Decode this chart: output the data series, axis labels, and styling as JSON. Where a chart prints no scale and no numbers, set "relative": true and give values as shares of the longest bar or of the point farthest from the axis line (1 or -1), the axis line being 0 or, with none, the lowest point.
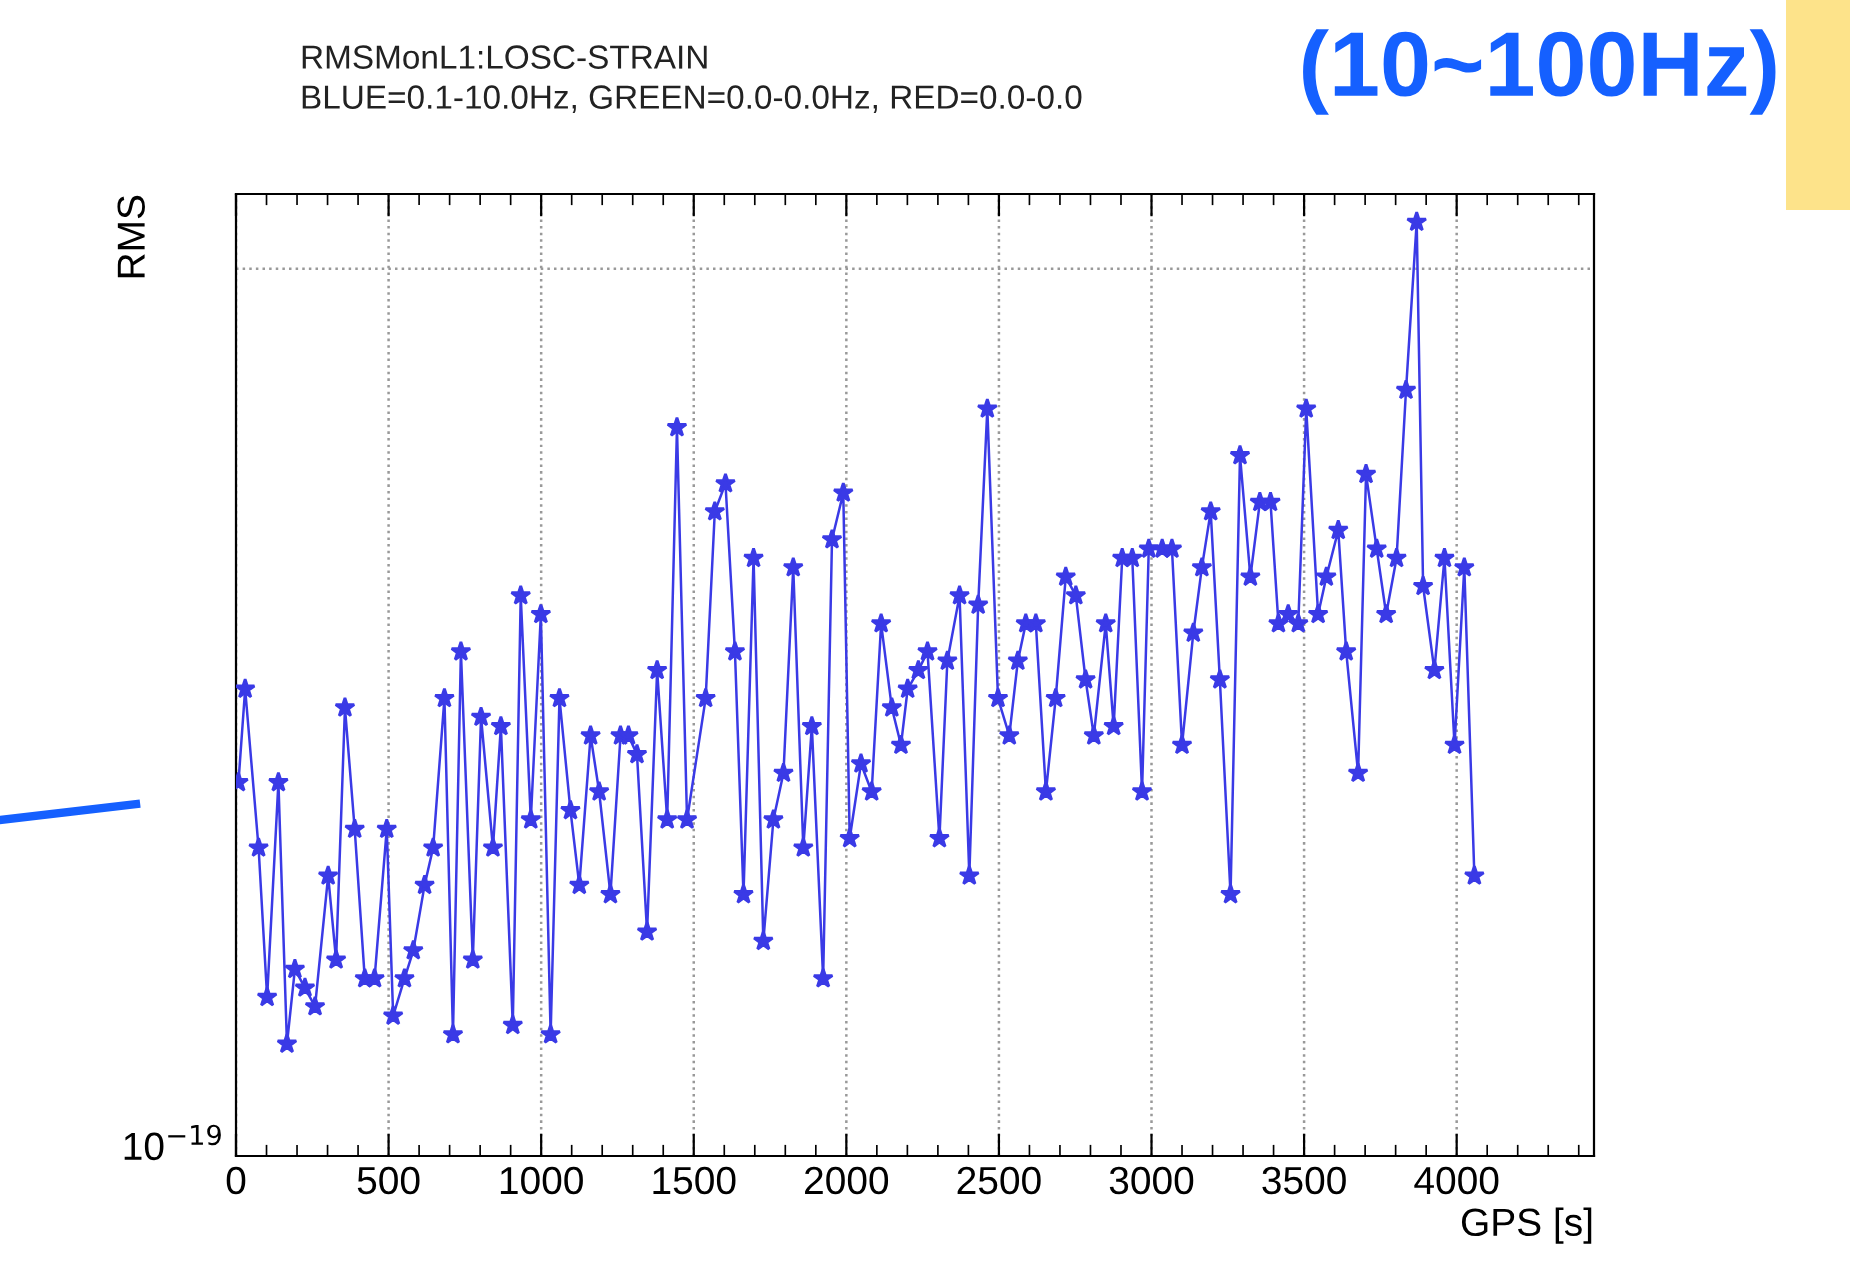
{
  "chart_data": {
    "type": "line",
    "title": "RMSMonL1:LOSC-STRAIN",
    "subtitle": "BLUE=0.1-10.0Hz, GREEN=0.0-0.0Hz, RED=0.0-0.0",
    "xlabel": "GPS [s]",
    "ylabel": "RMS",
    "relative": true,
    "annotations": [
      "(10~100Hz)",
      "10$^{−19}$"
    ],
    "xlim": [
      0,
      4450
    ],
    "xticks": [
      0,
      500,
      1000,
      1500,
      2000,
      2500,
      3000,
      3500,
      4000
    ],
    "grid": "x",
    "marker": "star",
    "line_style": "solid",
    "ref_lines": [
      {
        "axis": "y",
        "value": 0.95,
        "color": "#999999",
        "line_style": "dotted"
      }
    ],
    "series": [
      {
        "color": "#3a3ae6",
        "x": [
          8,
          30,
          74,
          102,
          139,
          167,
          193,
          226,
          259,
          302,
          328,
          357,
          389,
          422,
          454,
          494,
          515,
          552,
          581,
          618,
          646,
          683,
          711,
          737,
          776,
          803,
          842,
          868,
          907,
          933,
          966,
          999,
          1031,
          1060,
          1096,
          1125,
          1162,
          1190,
          1227,
          1260,
          1286,
          1314,
          1347,
          1380,
          1413,
          1445,
          1478,
          1539,
          1569,
          1604,
          1635,
          1663,
          1696,
          1728,
          1761,
          1794,
          1826,
          1859,
          1887,
          1924,
          1953,
          1990,
          2011,
          2048,
          2083,
          2114,
          2149,
          2179,
          2201,
          2236,
          2266,
          2305,
          2331,
          2371,
          2403,
          2432,
          2462,
          2497,
          2534,
          2562,
          2588,
          2621,
          2654,
          2686,
          2719,
          2752,
          2784,
          2811,
          2850,
          2876,
          2904,
          2937,
          2969,
          2991,
          3035,
          3067,
          3100,
          3137,
          3165,
          3194,
          3224,
          3259,
          3290,
          3324,
          3355,
          3390,
          3416,
          3448,
          3481,
          3507,
          3546,
          3573,
          3612,
          3638,
          3677,
          3703,
          3738,
          3769,
          3803,
          3834,
          3869,
          3890,
          3927,
          3960,
          3993,
          4025,
          4058
        ],
        "values": [
          0.4,
          0.5,
          0.33,
          0.17,
          0.4,
          0.12,
          0.2,
          0.18,
          0.16,
          0.3,
          0.21,
          0.48,
          0.35,
          0.19,
          0.19,
          0.35,
          0.15,
          0.19,
          0.22,
          0.29,
          0.33,
          0.49,
          0.13,
          0.54,
          0.21,
          0.47,
          0.33,
          0.46,
          0.14,
          0.6,
          0.36,
          0.58,
          0.13,
          0.49,
          0.37,
          0.29,
          0.45,
          0.39,
          0.28,
          0.45,
          0.45,
          0.43,
          0.24,
          0.52,
          0.36,
          0.78,
          0.36,
          0.49,
          0.69,
          0.72,
          0.54,
          0.28,
          0.64,
          0.23,
          0.36,
          0.41,
          0.63,
          0.33,
          0.46,
          0.19,
          0.66,
          0.71,
          0.34,
          0.42,
          0.39,
          0.57,
          0.48,
          0.44,
          0.5,
          0.52,
          0.54,
          0.34,
          0.53,
          0.6,
          0.3,
          0.59,
          0.8,
          0.49,
          0.45,
          0.53,
          0.57,
          0.57,
          0.39,
          0.49,
          0.62,
          0.6,
          0.51,
          0.45,
          0.57,
          0.46,
          0.64,
          0.64,
          0.39,
          0.65,
          0.65,
          0.65,
          0.44,
          0.56,
          0.63,
          0.69,
          0.51,
          0.28,
          0.75,
          0.62,
          0.7,
          0.7,
          0.57,
          0.58,
          0.57,
          0.8,
          0.58,
          0.62,
          0.67,
          0.54,
          0.41,
          0.73,
          0.65,
          0.58,
          0.64,
          0.82,
          1.0,
          0.61,
          0.52,
          0.64,
          0.44,
          0.63,
          0.3
        ]
      }
    ]
  }
}
